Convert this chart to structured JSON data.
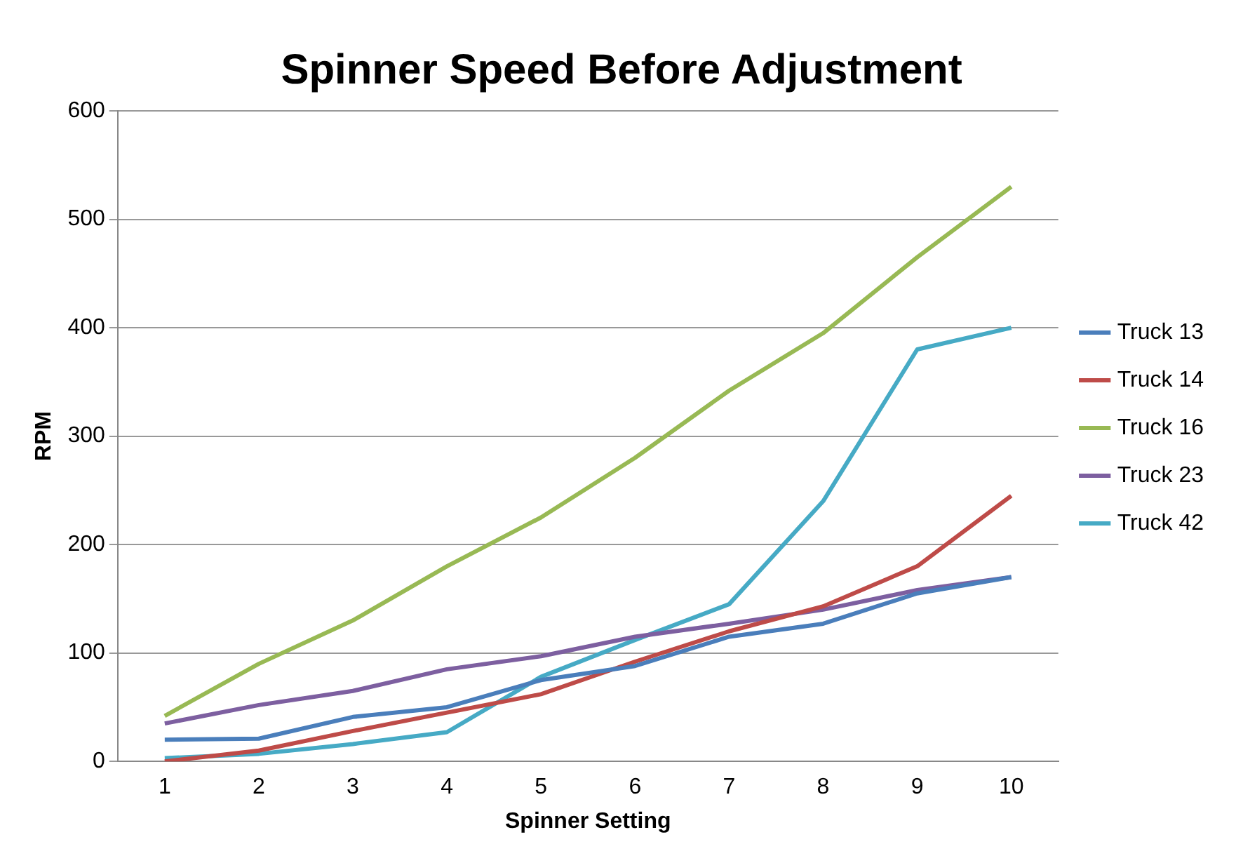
{
  "chart_data": {
    "type": "line",
    "title": "Spinner Speed Before Adjustment",
    "xlabel": "Spinner Setting",
    "ylabel": "RPM",
    "categories": [
      "1",
      "2",
      "3",
      "4",
      "5",
      "6",
      "7",
      "8",
      "9",
      "10"
    ],
    "series": [
      {
        "name": "Truck 13",
        "color": "#4a7ebb",
        "values": [
          20,
          21,
          41,
          50,
          75,
          88,
          115,
          127,
          155,
          170
        ]
      },
      {
        "name": "Truck 14",
        "color": "#be4b48",
        "values": [
          0,
          10,
          28,
          45,
          62,
          92,
          120,
          143,
          180,
          245
        ]
      },
      {
        "name": "Truck 16",
        "color": "#98b954",
        "values": [
          42,
          90,
          130,
          180,
          225,
          280,
          342,
          395,
          465,
          530
        ]
      },
      {
        "name": "Truck 23",
        "color": "#7d5fa0",
        "values": [
          35,
          52,
          65,
          85,
          97,
          115,
          127,
          140,
          158,
          170
        ]
      },
      {
        "name": "Truck 42",
        "color": "#46aac5",
        "values": [
          3,
          7,
          16,
          27,
          78,
          112,
          145,
          240,
          380,
          400
        ]
      }
    ],
    "ylim": [
      0,
      600
    ],
    "yticks": [
      0,
      100,
      200,
      300,
      400,
      500,
      600
    ],
    "grid": "y",
    "legend": "right",
    "marker": "none",
    "line_style": "solid"
  }
}
